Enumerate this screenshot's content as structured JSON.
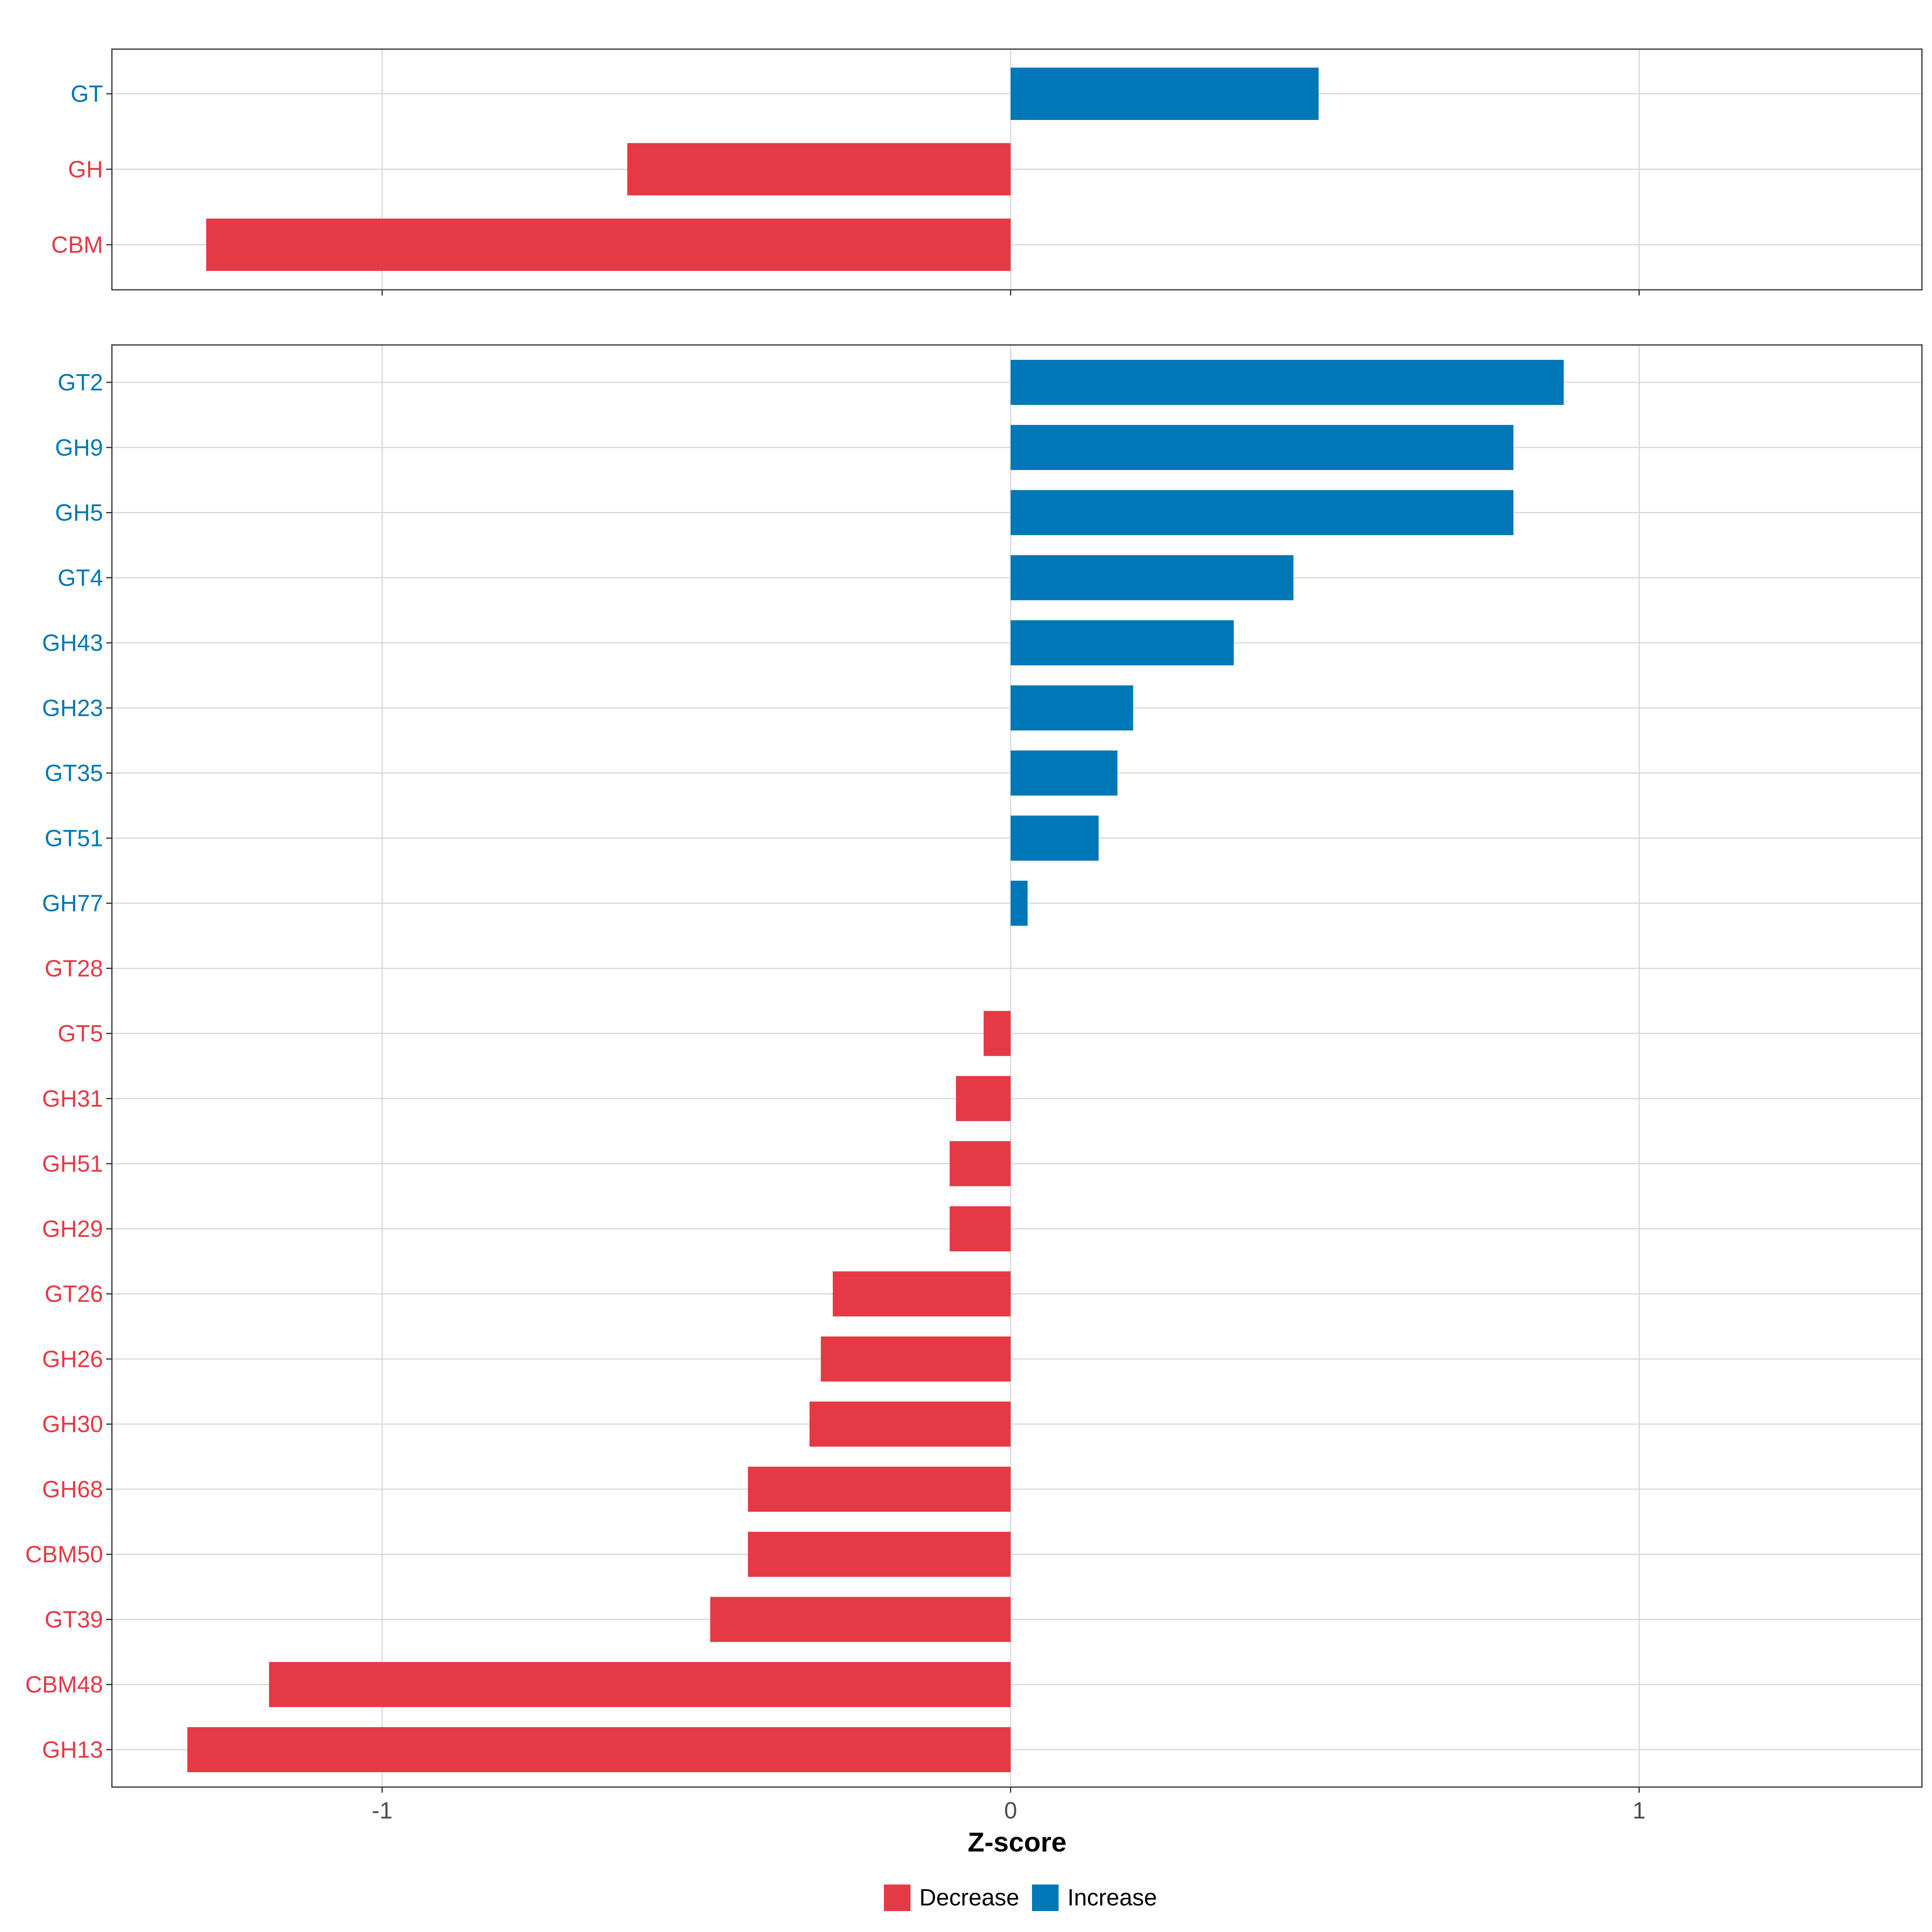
{
  "chart_data": [
    {
      "type": "bar",
      "orientation": "horizontal",
      "panel": "top",
      "categories": [
        "GT",
        "GH",
        "CBM"
      ],
      "values": [
        0.49,
        -0.61,
        -1.28
      ],
      "xlim": [
        -1.43,
        1.45
      ]
    },
    {
      "type": "bar",
      "orientation": "horizontal",
      "panel": "bottom",
      "categories": [
        "GT2",
        "GH9",
        "GH5",
        "GT4",
        "GH43",
        "GH23",
        "GT35",
        "GT51",
        "GH77",
        "GT28",
        "GT5",
        "GH31",
        "GH51",
        "GH29",
        "GT26",
        "GH26",
        "GH30",
        "GH68",
        "CBM50",
        "GT39",
        "CBM48",
        "GH13"
      ],
      "values": [
        0.88,
        0.8,
        0.8,
        0.45,
        0.355,
        0.195,
        0.17,
        0.14,
        0.027,
        0,
        -0.043,
        -0.087,
        -0.097,
        -0.097,
        -0.283,
        -0.302,
        -0.32,
        -0.418,
        -0.418,
        -0.478,
        -1.18,
        -1.31
      ],
      "xlim": [
        -1.43,
        1.45
      ],
      "xticks": [
        -1,
        0,
        1
      ],
      "xtick_labels": [
        "-1",
        "0",
        "1"
      ],
      "xlabel": "Z-score"
    }
  ],
  "legend": {
    "items": [
      {
        "label": "Decrease",
        "color": "#E63946"
      },
      {
        "label": "Increase",
        "color": "#0077B6"
      }
    ]
  },
  "colors": {
    "decrease": "#E63946",
    "increase": "#0077B6",
    "grid": "#d9d9d9",
    "panel_border": "#333333"
  }
}
